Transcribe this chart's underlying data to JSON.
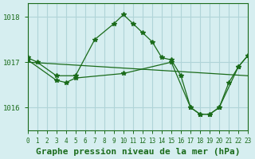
{
  "title": "Graphe pression niveau de la mer (hPa)",
  "background_color": "#d6eef0",
  "grid_color": "#b0d4d8",
  "line_color": "#1a6b1a",
  "line_color2": "#1a6b1a",
  "xlim": [
    0,
    23
  ],
  "ylim": [
    1015.5,
    1018.3
  ],
  "yticks": [
    1016,
    1017,
    1018
  ],
  "xticks": [
    0,
    1,
    2,
    3,
    4,
    5,
    6,
    7,
    8,
    9,
    10,
    11,
    12,
    13,
    14,
    15,
    16,
    17,
    18,
    19,
    20,
    21,
    22,
    23
  ],
  "series1_x": [
    0,
    1,
    3,
    5,
    7,
    9,
    10,
    11,
    12,
    13,
    14,
    15,
    16,
    17,
    18,
    19,
    20,
    21,
    22,
    23
  ],
  "series1_y": [
    1017.1,
    1017.0,
    1016.7,
    1016.7,
    1017.5,
    1017.85,
    1018.05,
    1017.85,
    1017.65,
    1017.45,
    1017.1,
    1017.05,
    1016.7,
    1016.0,
    1015.85,
    1015.85,
    1016.0,
    1016.55,
    1016.9,
    1017.15
  ],
  "series2_x": [
    0,
    3,
    4,
    5,
    10,
    15,
    17,
    18,
    19,
    20,
    22,
    23
  ],
  "series2_y": [
    1017.05,
    1016.6,
    1016.55,
    1016.65,
    1016.75,
    1017.0,
    1016.0,
    1015.85,
    1015.85,
    1016.0,
    1016.9,
    1017.15
  ],
  "series3_x": [
    0,
    23
  ],
  "series3_y": [
    1017.0,
    1016.7
  ],
  "title_fontsize": 8,
  "tick_fontsize": 6.5
}
